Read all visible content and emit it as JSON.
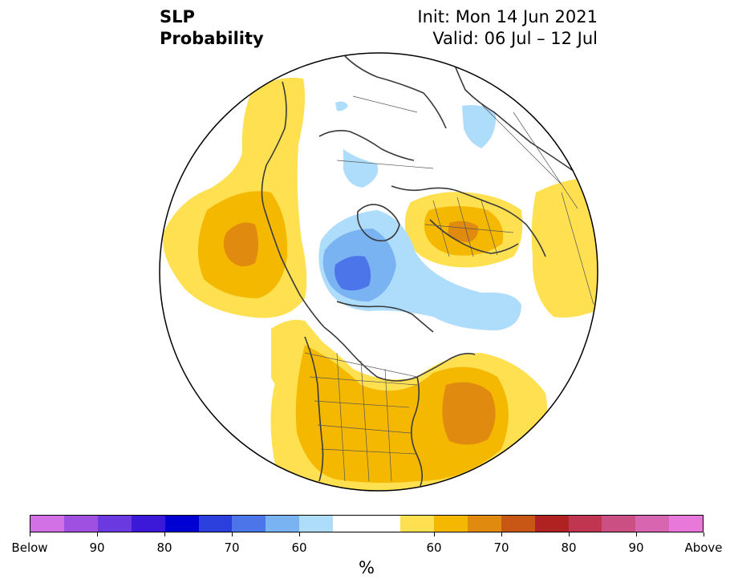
{
  "header": {
    "title_line1": "SLP",
    "title_line2": "Probability",
    "init": "Init: Mon 14 Jun 2021",
    "valid": "Valid: 06 Jul – 12 Jul"
  },
  "colorbar": {
    "colors": [
      "#d470e6",
      "#a050e0",
      "#6a3ae0",
      "#3c18d8",
      "#0000d2",
      "#2a3fdc",
      "#4d75ea",
      "#7ab3f2",
      "#aedcfb",
      "#ffffff",
      "#ffffff",
      "#ffe050",
      "#f5b800",
      "#e08b10",
      "#c85716",
      "#b02222",
      "#c03650",
      "#cc4f84",
      "#d865b0",
      "#e878da"
    ],
    "labels": [
      "Below",
      "90",
      "80",
      "70",
      "60",
      "60",
      "70",
      "80",
      "90",
      "Above"
    ],
    "unit": "%"
  },
  "map": {
    "projection": "north-polar-stereographic",
    "palette": {
      "below_60": "#aedcfb",
      "below_70": "#7ab3f2",
      "below_80": "#4d75ea",
      "above_60": "#ffe050",
      "above_70": "#f5b800",
      "above_80": "#e08b10",
      "coastline": "#3a3a3a",
      "border": "#555555"
    }
  }
}
